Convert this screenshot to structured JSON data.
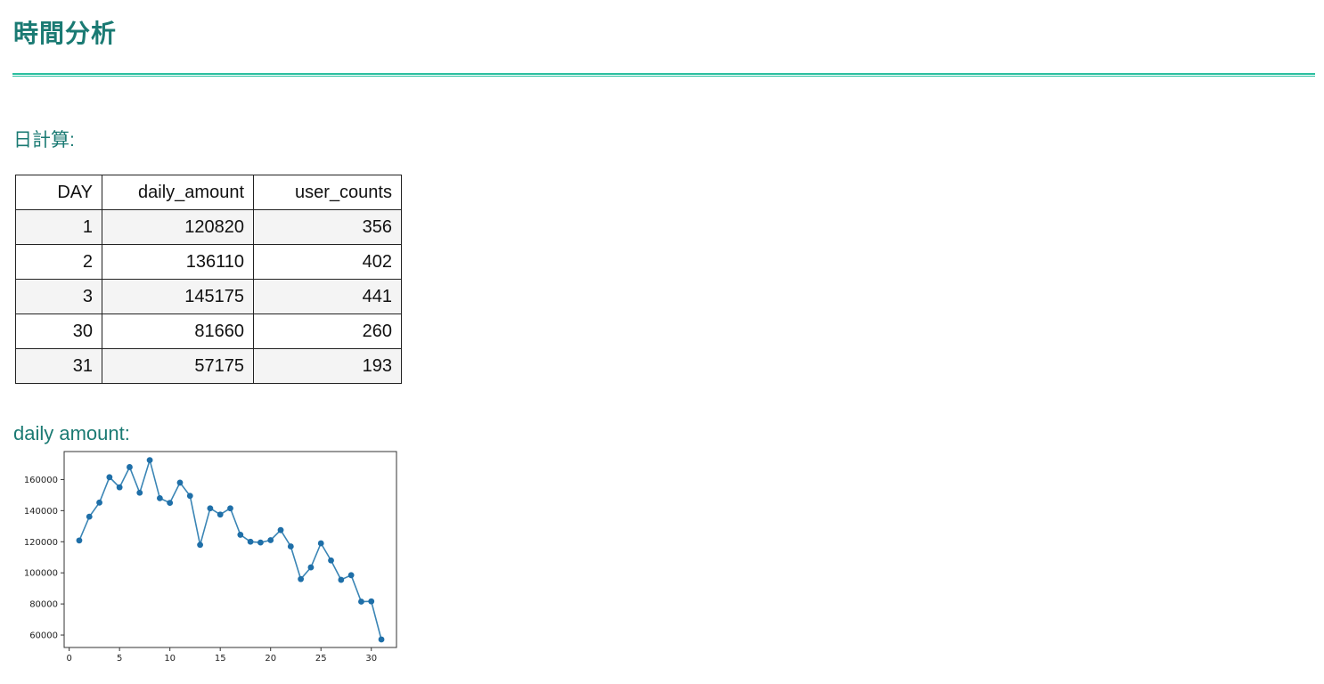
{
  "page": {
    "title": "時間分析",
    "section_daily_calc": "日計算:",
    "section_daily_amount": "daily amount:"
  },
  "table": {
    "headers": [
      "DAY",
      "daily_amount",
      "user_counts"
    ],
    "rows": [
      [
        "1",
        "120820",
        "356"
      ],
      [
        "2",
        "136110",
        "402"
      ],
      [
        "3",
        "145175",
        "441"
      ],
      [
        "30",
        "81660",
        "260"
      ],
      [
        "31",
        "57175",
        "193"
      ]
    ]
  },
  "colors": {
    "title": "#1a7a73",
    "rule": "#2bbf9f",
    "line": "#3a85b5",
    "marker": "#1f6fa8"
  },
  "chart_data": {
    "type": "line",
    "title": "",
    "xlabel": "",
    "ylabel": "",
    "x": [
      1,
      2,
      3,
      4,
      5,
      6,
      7,
      8,
      9,
      10,
      11,
      12,
      13,
      14,
      15,
      16,
      17,
      18,
      19,
      20,
      21,
      22,
      23,
      24,
      25,
      26,
      27,
      28,
      29,
      30,
      31
    ],
    "series": [
      {
        "values": [
          120820,
          136110,
          145175,
          161500,
          155000,
          168000,
          151500,
          172500,
          148000,
          145000,
          158000,
          149500,
          118000,
          141500,
          137500,
          141500,
          124500,
          120000,
          119500,
          121000,
          127500,
          117000,
          96000,
          103500,
          119000,
          108000,
          95500,
          98500,
          81500,
          81660,
          57175
        ]
      }
    ],
    "xlim": [
      -0.5,
      32.5
    ],
    "ylim": [
      52000,
      178000
    ],
    "xticks": [
      0,
      5,
      10,
      15,
      20,
      25,
      30
    ],
    "xtick_labels": [
      "0",
      "5",
      "10",
      "15",
      "20",
      "25",
      "30"
    ],
    "yticks": [
      60000,
      80000,
      100000,
      120000,
      140000,
      160000
    ],
    "ytick_labels": [
      "60000",
      "80000",
      "100000",
      "120000",
      "140000",
      "160000"
    ],
    "grid": false,
    "marker": "circle"
  }
}
